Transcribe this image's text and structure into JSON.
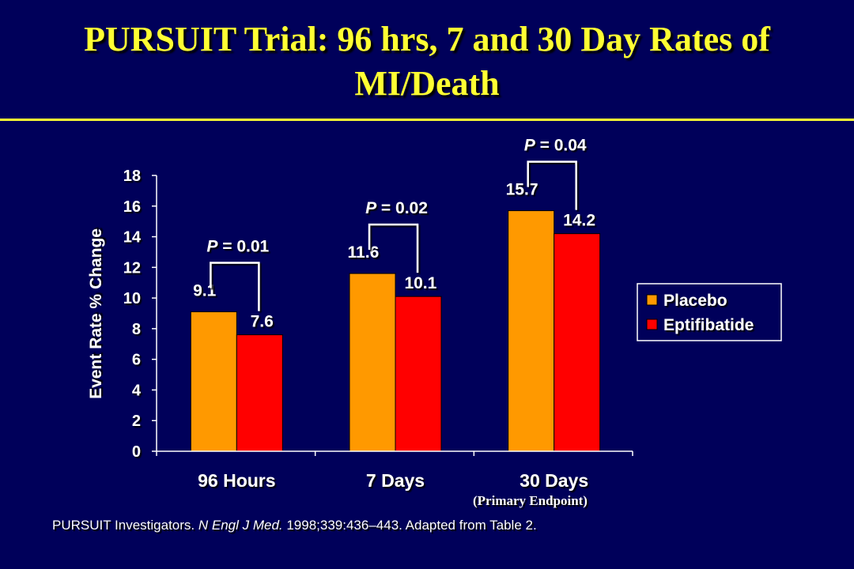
{
  "slide": {
    "title_line1": "PURSUIT Trial: 96 hrs, 7 and 30 Day Rates of",
    "title_line2": "MI/Death",
    "footnote_part1": "PURSUIT Investigators. ",
    "footnote_journal": "N Engl J Med.",
    "footnote_part2": " 1998;339:436–443.  Adapted from Table 2.",
    "primary_endpoint_note": "(Primary Endpoint)"
  },
  "colors": {
    "background": "#00005a",
    "title": "#ffff33",
    "placebo": "#ff9900",
    "eptifibatide": "#ff0000",
    "axis": "#ffffff"
  },
  "chart_data": {
    "type": "bar",
    "title": "",
    "xlabel": "",
    "ylabel": "Event Rate % Change",
    "ylim": [
      0,
      18
    ],
    "yticks": [
      0,
      2,
      4,
      6,
      8,
      10,
      12,
      14,
      16,
      18
    ],
    "grid": false,
    "legend_position": "right",
    "categories": [
      "96 Hours",
      "7 Days",
      "30 Days"
    ],
    "series": [
      {
        "name": "Placebo",
        "values": [
          9.1,
          11.6,
          15.7
        ],
        "labels": [
          "9.1",
          "11.6",
          "15.7"
        ]
      },
      {
        "name": "Eptifibatide",
        "values": [
          7.6,
          10.1,
          14.2
        ],
        "labels": [
          "7.6",
          "10.1",
          "14.2"
        ]
      }
    ],
    "annotations": [
      {
        "category": "96 Hours",
        "p_prefix": "P",
        "p_rest": " = 0.01"
      },
      {
        "category": "7 Days",
        "p_prefix": "P",
        "p_rest": " = 0.02"
      },
      {
        "category": "30 Days",
        "p_prefix": "P",
        "p_rest": " = 0.04"
      }
    ]
  }
}
